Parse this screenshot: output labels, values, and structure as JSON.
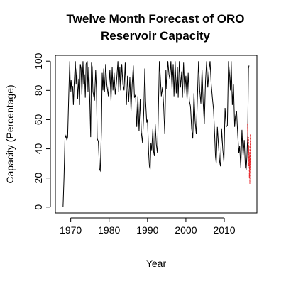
{
  "chart_data": {
    "type": "line",
    "title_lines": [
      "Twelve Month Forecast of ORO",
      "Reservoir Capacity"
    ],
    "xlabel": "Year",
    "ylabel": "Capacity (Percentage)",
    "xlim": [
      1966,
      2018.5
    ],
    "ylim": [
      -4,
      104
    ],
    "x_ticks": [
      1970,
      1980,
      1990,
      2000,
      2010
    ],
    "y_ticks": [
      0,
      20,
      40,
      60,
      80,
      100
    ],
    "grid": false,
    "legend": "none",
    "series": [
      {
        "color": "#000000",
        "style": "solid",
        "points": [
          [
            1968.0,
            0
          ],
          [
            1968.25,
            20
          ],
          [
            1968.5,
            47
          ],
          [
            1968.75,
            49
          ],
          [
            1969.0,
            46
          ],
          [
            1969.2,
            48
          ],
          [
            1969.5,
            78
          ],
          [
            1969.75,
            100
          ],
          [
            1969.9,
            79
          ],
          [
            1970.1,
            87
          ],
          [
            1970.3,
            79
          ],
          [
            1970.5,
            83
          ],
          [
            1970.7,
            70
          ],
          [
            1970.9,
            85
          ],
          [
            1971.2,
            100
          ],
          [
            1971.4,
            84
          ],
          [
            1971.6,
            95
          ],
          [
            1971.8,
            74
          ],
          [
            1972.1,
            88
          ],
          [
            1972.3,
            70
          ],
          [
            1972.5,
            98
          ],
          [
            1972.7,
            95
          ],
          [
            1972.9,
            77
          ],
          [
            1973.2,
            100
          ],
          [
            1973.4,
            84
          ],
          [
            1973.6,
            91
          ],
          [
            1973.8,
            75
          ],
          [
            1974.0,
            98
          ],
          [
            1974.3,
            100
          ],
          [
            1974.5,
            79
          ],
          [
            1974.7,
            96
          ],
          [
            1974.9,
            80
          ],
          [
            1975.2,
            48
          ],
          [
            1975.4,
            99
          ],
          [
            1975.6,
            96
          ],
          [
            1975.8,
            79
          ],
          [
            1976.2,
            73
          ],
          [
            1976.5,
            94
          ],
          [
            1976.7,
            81
          ],
          [
            1976.9,
            47
          ],
          [
            1977.2,
            45
          ],
          [
            1977.5,
            26
          ],
          [
            1977.7,
            25
          ],
          [
            1978.0,
            52
          ],
          [
            1978.2,
            92
          ],
          [
            1978.4,
            80
          ],
          [
            1978.6,
            95
          ],
          [
            1978.8,
            79
          ],
          [
            1979.1,
            98
          ],
          [
            1979.4,
            84
          ],
          [
            1979.6,
            80
          ],
          [
            1979.8,
            76
          ],
          [
            1980.2,
            94
          ],
          [
            1980.5,
            73
          ],
          [
            1980.8,
            96
          ],
          [
            1981.0,
            80
          ],
          [
            1981.3,
            92
          ],
          [
            1981.6,
            77
          ],
          [
            1981.9,
            85
          ],
          [
            1982.3,
            100
          ],
          [
            1982.5,
            79
          ],
          [
            1982.8,
            96
          ],
          [
            1983.0,
            80
          ],
          [
            1983.3,
            98
          ],
          [
            1983.6,
            84
          ],
          [
            1983.9,
            80
          ],
          [
            1984.2,
            99
          ],
          [
            1984.5,
            70
          ],
          [
            1984.8,
            90
          ],
          [
            1985.1,
            72
          ],
          [
            1985.4,
            89
          ],
          [
            1985.7,
            66
          ],
          [
            1986.0,
            84
          ],
          [
            1986.3,
            97
          ],
          [
            1986.6,
            75
          ],
          [
            1986.9,
            77
          ],
          [
            1987.2,
            55
          ],
          [
            1987.5,
            76
          ],
          [
            1987.8,
            52
          ],
          [
            1988.1,
            74
          ],
          [
            1988.4,
            51
          ],
          [
            1988.7,
            44
          ],
          [
            1989.0,
            63
          ],
          [
            1989.3,
            95
          ],
          [
            1989.5,
            73
          ],
          [
            1989.8,
            58
          ],
          [
            1990.0,
            60
          ],
          [
            1990.3,
            37
          ],
          [
            1990.5,
            28
          ],
          [
            1990.7,
            26
          ],
          [
            1990.9,
            44
          ],
          [
            1991.1,
            39
          ],
          [
            1991.4,
            54
          ],
          [
            1991.6,
            38
          ],
          [
            1991.8,
            35
          ],
          [
            1992.0,
            57
          ],
          [
            1992.3,
            43
          ],
          [
            1992.6,
            37
          ],
          [
            1992.9,
            75
          ],
          [
            1993.1,
            100
          ],
          [
            1993.3,
            91
          ],
          [
            1993.6,
            76
          ],
          [
            1993.9,
            82
          ],
          [
            1994.2,
            70
          ],
          [
            1994.5,
            50
          ],
          [
            1994.8,
            94
          ],
          [
            1995.0,
            81
          ],
          [
            1995.3,
            100
          ],
          [
            1995.6,
            91
          ],
          [
            1995.8,
            88
          ],
          [
            1996.1,
            100
          ],
          [
            1996.4,
            81
          ],
          [
            1996.7,
            98
          ],
          [
            1996.9,
            76
          ],
          [
            1997.2,
            100
          ],
          [
            1997.5,
            78
          ],
          [
            1997.8,
            96
          ],
          [
            1998.0,
            75
          ],
          [
            1998.3,
            100
          ],
          [
            1998.6,
            82
          ],
          [
            1998.9,
            93
          ],
          [
            1999.1,
            75
          ],
          [
            1999.4,
            99
          ],
          [
            1999.7,
            78
          ],
          [
            2000.0,
            90
          ],
          [
            2000.3,
            74
          ],
          [
            2000.6,
            92
          ],
          [
            2000.9,
            73
          ],
          [
            2001.2,
            69
          ],
          [
            2001.5,
            54
          ],
          [
            2001.8,
            47
          ],
          [
            2002.1,
            78
          ],
          [
            2002.4,
            59
          ],
          [
            2002.7,
            50
          ],
          [
            2003.0,
            75
          ],
          [
            2003.3,
            100
          ],
          [
            2003.6,
            80
          ],
          [
            2003.9,
            71
          ],
          [
            2004.2,
            94
          ],
          [
            2004.5,
            72
          ],
          [
            2004.8,
            57
          ],
          [
            2005.1,
            86
          ],
          [
            2005.4,
            100
          ],
          [
            2005.7,
            82
          ],
          [
            2006.0,
            93
          ],
          [
            2006.3,
            100
          ],
          [
            2006.6,
            84
          ],
          [
            2006.9,
            75
          ],
          [
            2007.2,
            67
          ],
          [
            2007.5,
            49
          ],
          [
            2007.7,
            35
          ],
          [
            2007.9,
            30
          ],
          [
            2008.2,
            55
          ],
          [
            2008.5,
            42
          ],
          [
            2008.8,
            31
          ],
          [
            2009.0,
            28
          ],
          [
            2009.3,
            54
          ],
          [
            2009.6,
            40
          ],
          [
            2009.9,
            31
          ],
          [
            2010.2,
            68
          ],
          [
            2010.5,
            55
          ],
          [
            2010.8,
            56
          ],
          [
            2011.1,
            100
          ],
          [
            2011.4,
            90
          ],
          [
            2011.6,
            80
          ],
          [
            2011.8,
            100
          ],
          [
            2012.1,
            70
          ],
          [
            2012.4,
            84
          ],
          [
            2012.7,
            55
          ],
          [
            2012.9,
            62
          ],
          [
            2013.2,
            66
          ],
          [
            2013.5,
            50
          ],
          [
            2013.8,
            37
          ],
          [
            2014.0,
            42
          ],
          [
            2014.3,
            27
          ],
          [
            2014.6,
            53
          ],
          [
            2014.9,
            35
          ],
          [
            2015.2,
            46
          ],
          [
            2015.5,
            27
          ],
          [
            2015.7,
            26
          ],
          [
            2015.9,
            35
          ],
          [
            2016.1,
            50
          ],
          [
            2016.3,
            95
          ],
          [
            2016.45,
            97
          ]
        ]
      },
      {
        "color": "#e8262a",
        "style": "dashed",
        "points": [
          [
            2016.05,
            57
          ],
          [
            2016.12,
            44
          ],
          [
            2016.18,
            52
          ],
          [
            2016.25,
            37
          ],
          [
            2016.32,
            48
          ],
          [
            2016.38,
            28
          ],
          [
            2016.45,
            42
          ],
          [
            2016.52,
            20
          ],
          [
            2016.58,
            36
          ],
          [
            2016.65,
            16
          ],
          [
            2016.72,
            31
          ],
          [
            2016.78,
            50
          ],
          [
            2016.85,
            24
          ]
        ]
      },
      {
        "color": "#e8262a",
        "style": "dashed",
        "points": [
          [
            2016.1,
            54
          ],
          [
            2016.2,
            40
          ],
          [
            2016.3,
            45
          ],
          [
            2016.4,
            32
          ],
          [
            2016.5,
            38
          ],
          [
            2016.6,
            26
          ],
          [
            2016.7,
            29
          ],
          [
            2016.8,
            38
          ],
          [
            2016.9,
            30
          ]
        ]
      }
    ]
  }
}
